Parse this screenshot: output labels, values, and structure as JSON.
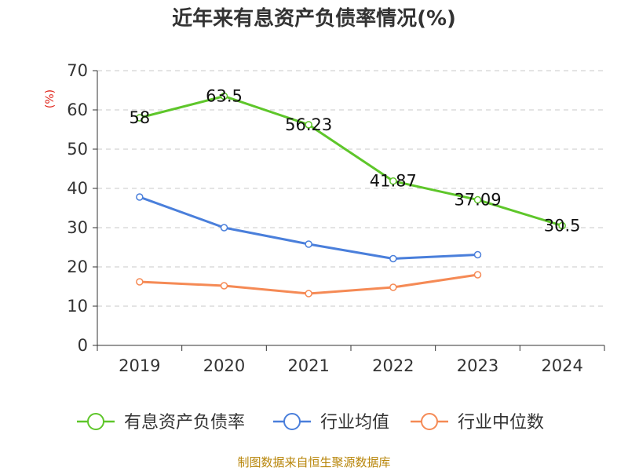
{
  "chart_data": {
    "type": "line",
    "title": "近年来有息资产负债率情况(%)",
    "ylabel": "(%)",
    "xlabel": "",
    "categories": [
      "2019",
      "2020",
      "2021",
      "2022",
      "2023",
      "2024"
    ],
    "ylim": [
      0,
      70
    ],
    "yticks": [
      0,
      10,
      20,
      30,
      40,
      50,
      60,
      70
    ],
    "grid": true,
    "legend_position": "bottom",
    "series": [
      {
        "name": "有息资产负债率",
        "color": "#5ec62a",
        "values": [
          58,
          63.5,
          56.23,
          41.87,
          37.09,
          30.5
        ],
        "labels": [
          "58",
          "63.5",
          "56.23",
          "41.87",
          "37.09",
          "30.5"
        ]
      },
      {
        "name": "行业均值",
        "color": "#4a7fdb",
        "values": [
          37.8,
          30,
          25.8,
          22.1,
          23.1,
          null
        ]
      },
      {
        "name": "行业中位数",
        "color": "#f58a55",
        "values": [
          16.2,
          15.2,
          13.2,
          14.8,
          18,
          null
        ]
      }
    ],
    "source": "制图数据来自恒生聚源数据库"
  }
}
